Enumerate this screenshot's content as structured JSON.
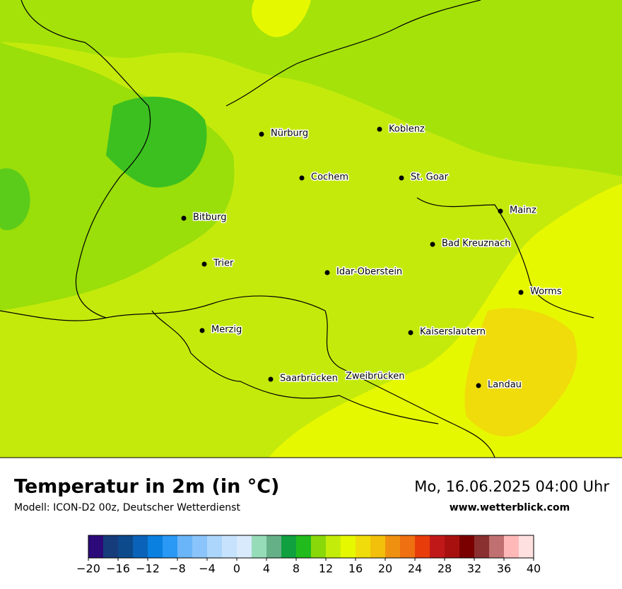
{
  "header": {
    "title": "Temperatur in 2m (in °C)",
    "subtitle": "Modell: ICON-D2 00z, Deutscher Wetterdienst",
    "date": "Mo, 16.06.2025 04:00 Uhr",
    "website": "www.wetterblick.com"
  },
  "map": {
    "cities": [
      "Nürburg",
      "Koblenz",
      "Cochem",
      "St. Goar",
      "Bitburg",
      "Mainz",
      "Bad Kreuznach",
      "Trier",
      "Idar-Oberstein",
      "Worms",
      "Merzig",
      "Kaiserslautern",
      "Saarbrücken",
      "Zweibrücken",
      "Landau"
    ]
  },
  "colorbar": {
    "lim": [
      -20,
      40
    ],
    "colors": [
      "#2d0a7a",
      "#173c7c",
      "#0c4a8c",
      "#0a63b8",
      "#0a80e0",
      "#2a98f5",
      "#6ab4f8",
      "#8ac4fa",
      "#acd6fb",
      "#c6e2fc",
      "#d8eafc",
      "#96dcb8",
      "#66b088",
      "#10a040",
      "#22bb1e",
      "#88d80a",
      "#c4ec0a",
      "#e6f800",
      "#f0dc0a",
      "#f2c00a",
      "#f09010",
      "#ee7010",
      "#e83c0a",
      "#c01818",
      "#a81010",
      "#7a0000",
      "#8a3030",
      "#c07070",
      "#ffb8b8",
      "#ffe0e0"
    ],
    "ticks": [
      {
        "value": -20,
        "label": "−20"
      },
      {
        "value": -16,
        "label": "−16"
      },
      {
        "value": -12,
        "label": "−12"
      },
      {
        "value": -8,
        "label": "−8"
      },
      {
        "value": -4,
        "label": "−4"
      },
      0,
      4,
      8,
      12,
      16,
      20,
      24,
      28,
      32,
      36,
      40
    ]
  }
}
